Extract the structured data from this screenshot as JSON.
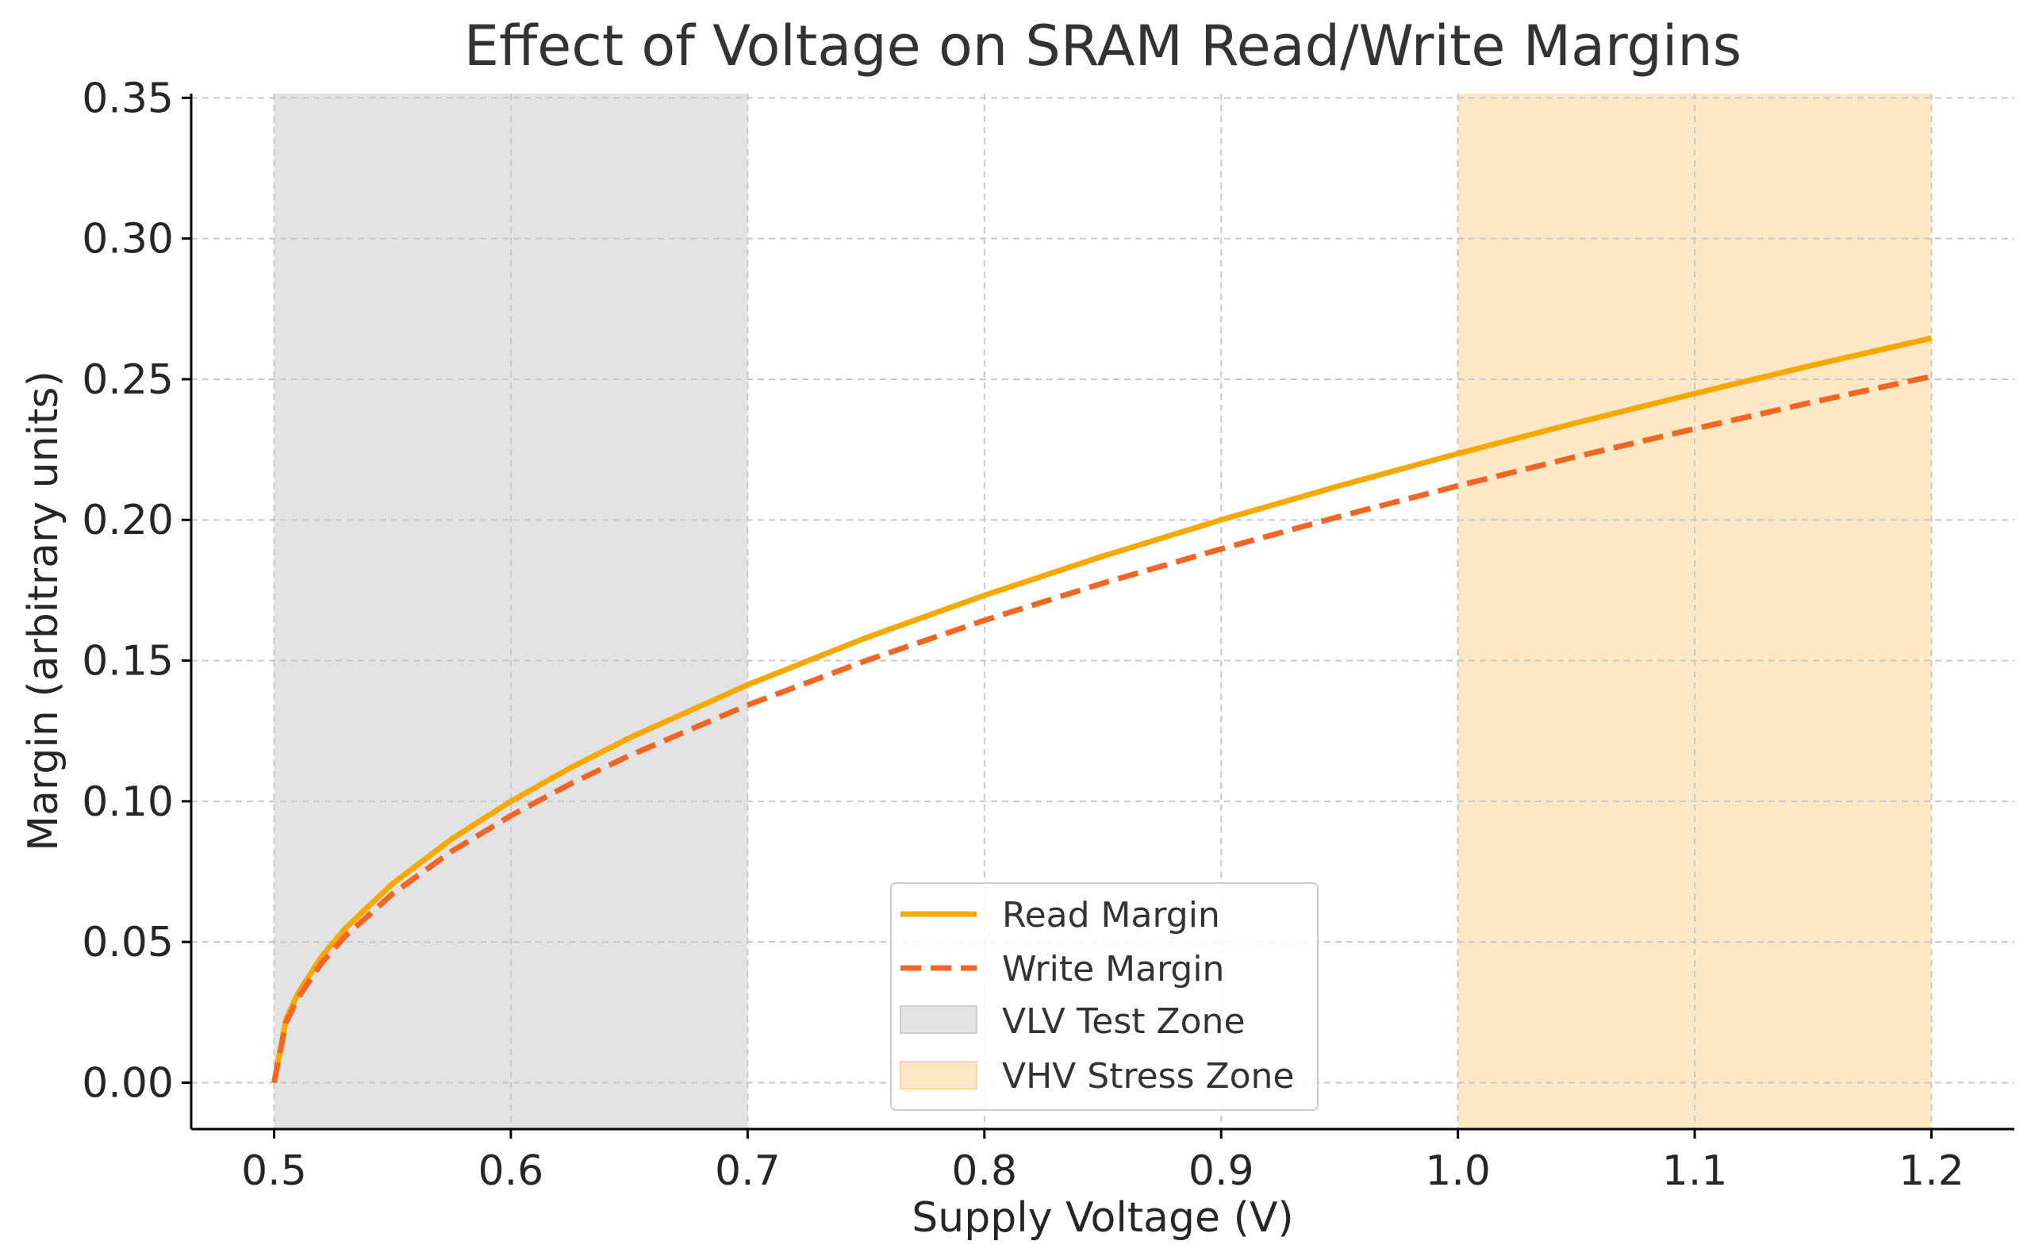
{
  "chart_data": {
    "type": "line",
    "title": "Effect of Voltage on SRAM Read/Write Margins",
    "xlabel": "Supply Voltage (V)",
    "ylabel": "Margin (arbitrary units)",
    "xlim": [
      0.465,
      1.235
    ],
    "ylim": [
      -0.0165,
      0.3515
    ],
    "x_ticks": [
      {
        "value": 0.5,
        "label": "0.5"
      },
      {
        "value": 0.6,
        "label": "0.6"
      },
      {
        "value": 0.7,
        "label": "0.7"
      },
      {
        "value": 0.8,
        "label": "0.8"
      },
      {
        "value": 0.9,
        "label": "0.9"
      },
      {
        "value": 1.0,
        "label": "1.0"
      },
      {
        "value": 1.1,
        "label": "1.1"
      },
      {
        "value": 1.2,
        "label": "1.2"
      }
    ],
    "y_ticks": [
      {
        "value": 0.0,
        "label": "0.00"
      },
      {
        "value": 0.05,
        "label": "0.05"
      },
      {
        "value": 0.1,
        "label": "0.10"
      },
      {
        "value": 0.15,
        "label": "0.15"
      },
      {
        "value": 0.2,
        "label": "0.20"
      },
      {
        "value": 0.25,
        "label": "0.25"
      },
      {
        "value": 0.3,
        "label": "0.30"
      },
      {
        "value": 0.35,
        "label": "0.35"
      }
    ],
    "grid": true,
    "legend_position": "bottom-center",
    "series": [
      {
        "name": "Read Margin",
        "color": "#F5A800",
        "line_style": "solid",
        "x": [
          0.5,
          0.505,
          0.51,
          0.52,
          0.53,
          0.55,
          0.575,
          0.6,
          0.625,
          0.65,
          0.7,
          0.75,
          0.8,
          0.85,
          0.9,
          0.95,
          1.0,
          1.05,
          1.1,
          1.15,
          1.2
        ],
        "y": [
          0.0,
          0.0224,
          0.0316,
          0.0447,
          0.0548,
          0.0707,
          0.0866,
          0.1,
          0.1118,
          0.1225,
          0.1414,
          0.1581,
          0.1732,
          0.1871,
          0.2,
          0.2121,
          0.2236,
          0.2345,
          0.2449,
          0.255,
          0.2646
        ]
      },
      {
        "name": "Write Margin",
        "color": "#F26522",
        "line_style": "dashed",
        "x": [
          0.5,
          0.505,
          0.51,
          0.52,
          0.53,
          0.55,
          0.575,
          0.6,
          0.625,
          0.65,
          0.7,
          0.75,
          0.8,
          0.85,
          0.9,
          0.95,
          1.0,
          1.05,
          1.1,
          1.15,
          1.2
        ],
        "y": [
          0.0,
          0.0212,
          0.03,
          0.0424,
          0.052,
          0.0671,
          0.0822,
          0.0949,
          0.1061,
          0.1162,
          0.1342,
          0.15,
          0.1643,
          0.1775,
          0.1897,
          0.2012,
          0.2121,
          0.2225,
          0.2324,
          0.2419,
          0.251
        ]
      }
    ],
    "zones": [
      {
        "name": "VLV Test Zone",
        "x_start": 0.5,
        "x_end": 0.7,
        "color": "#E3E3E3"
      },
      {
        "name": "VHV Stress Zone",
        "x_start": 1.0,
        "x_end": 1.2,
        "color": "#FCE8C5"
      }
    ]
  }
}
